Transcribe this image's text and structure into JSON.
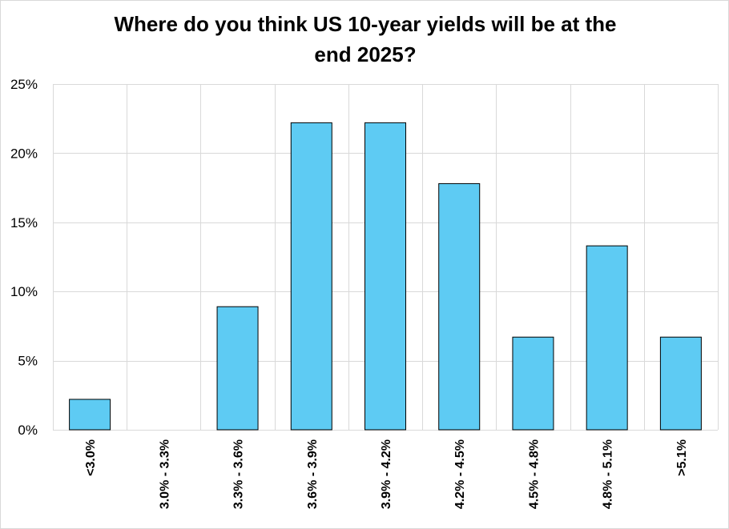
{
  "chart_data": {
    "type": "bar",
    "title": "Where do you think US 10-year yields will be at the end 2025?",
    "title_lines": [
      "Where do you think US 10-year yields will be at the",
      "end 2025?"
    ],
    "xlabel": "",
    "ylabel": "",
    "categories": [
      "<3.0%",
      "3.0% - 3.3%",
      "3.3% - 3.6%",
      "3.6% - 3.9%",
      "3.9% - 4.2%",
      "4.2% - 4.5%",
      "4.5% - 4.8%",
      "4.8% - 5.1%",
      ">5.1%"
    ],
    "values": [
      2.2,
      0,
      8.9,
      22.2,
      22.2,
      17.8,
      6.7,
      13.3,
      6.7
    ],
    "ylim": [
      0,
      25
    ],
    "yticks": [
      0,
      5,
      10,
      15,
      20,
      25
    ],
    "ytick_labels": [
      "0%",
      "5%",
      "10%",
      "15%",
      "20%",
      "25%"
    ],
    "grid": true,
    "legend": "none",
    "bar_color": "#5ecbf3",
    "bar_edge_color": "#000000",
    "grid_color": "#d9d9d9"
  }
}
